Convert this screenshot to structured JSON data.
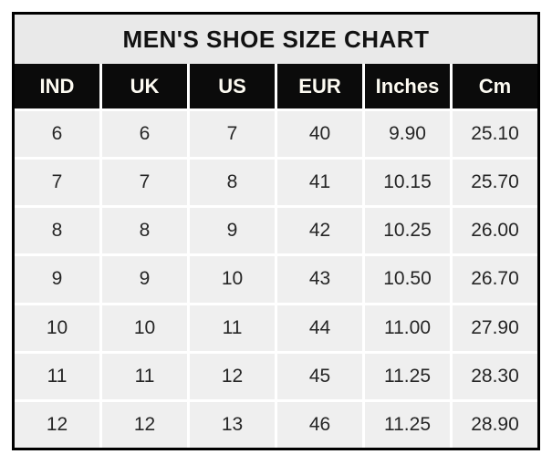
{
  "chart_data": {
    "type": "table",
    "title": "MEN'S SHOE SIZE CHART",
    "columns": [
      "IND",
      "UK",
      "US",
      "EUR",
      "Inches",
      "Cm"
    ],
    "rows": [
      [
        "6",
        "6",
        "7",
        "40",
        "9.90",
        "25.10"
      ],
      [
        "7",
        "7",
        "8",
        "41",
        "10.15",
        "25.70"
      ],
      [
        "8",
        "8",
        "9",
        "42",
        "10.25",
        "26.00"
      ],
      [
        "9",
        "9",
        "10",
        "43",
        "10.50",
        "26.70"
      ],
      [
        "10",
        "10",
        "11",
        "44",
        "11.00",
        "27.90"
      ],
      [
        "11",
        "11",
        "12",
        "45",
        "11.25",
        "28.30"
      ],
      [
        "12",
        "12",
        "13",
        "46",
        "11.25",
        "28.90"
      ]
    ]
  },
  "colors": {
    "border": "#000000",
    "title_bg": "#e9e9e9",
    "header_bg": "#0b0b0b",
    "header_text": "#fdfbf2",
    "cell_bg": "#efefef",
    "grid": "#ffffff",
    "body_text": "#262626"
  }
}
